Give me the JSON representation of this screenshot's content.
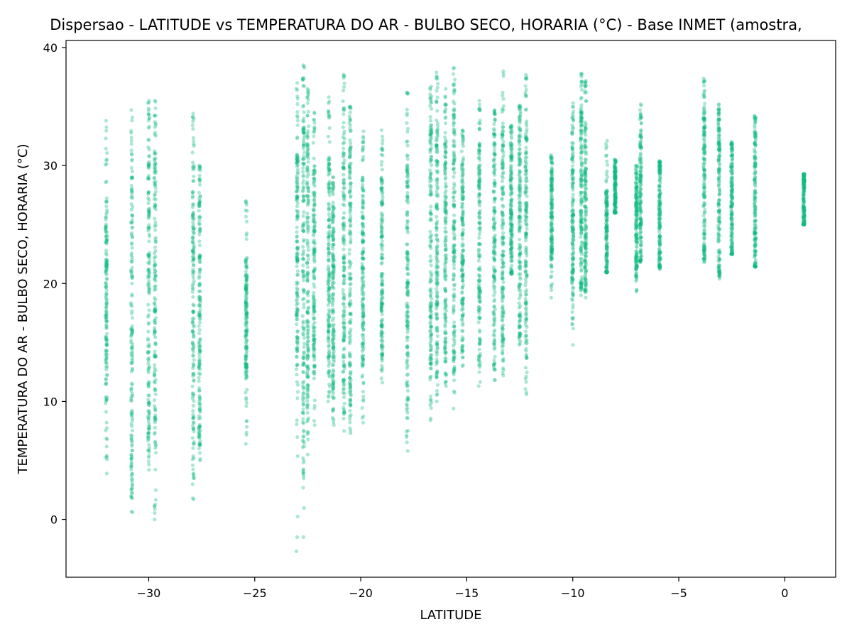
{
  "chart_data": {
    "type": "scatter",
    "title": "Dispersao - LATITUDE vs TEMPERATURA DO AR - BULBO SECO, HORARIA (°C) - Base INMET (amostra, ",
    "xlabel": "LATITUDE",
    "ylabel": "TEMPERATURA DO AR - BULBO SECO, HORARIA (°C)",
    "xlim": [
      -33.9,
      2.4
    ],
    "ylim": [
      -4.9,
      40.6
    ],
    "xticks": [
      -30,
      -25,
      -20,
      -15,
      -10,
      -5,
      0
    ],
    "yticks": [
      0,
      10,
      20,
      30,
      40
    ],
    "grid": false,
    "marker_color": "#10b981",
    "marker_opacity": 0.35,
    "series": [
      {
        "stations": [
          {
            "lat": -32.0,
            "min": 3.9,
            "max": 33.8,
            "core_min": 10.0,
            "core_max": 27.0
          },
          {
            "lat": -30.8,
            "min": 0.6,
            "max": 34.7,
            "core_min": 3.0,
            "core_max": 30.0
          },
          {
            "lat": -30.0,
            "min": 4.2,
            "max": 35.5,
            "core_min": 7.0,
            "core_max": 33.0
          },
          {
            "lat": -29.7,
            "min": 0.0,
            "max": 35.5,
            "core_min": 6.5,
            "core_max": 32.0
          },
          {
            "lat": -27.9,
            "min": 1.7,
            "max": 34.4,
            "core_min": 6.0,
            "core_max": 30.0
          },
          {
            "lat": -27.6,
            "min": 5.0,
            "max": 30.0,
            "core_min": 7.0,
            "core_max": 28.0
          },
          {
            "lat": -25.4,
            "min": 6.4,
            "max": 27.0,
            "core_min": 12.0,
            "core_max": 22.0
          },
          {
            "lat": -23.0,
            "min": -2.7,
            "max": 37.0,
            "core_min": 13.0,
            "core_max": 31.0
          },
          {
            "lat": -22.7,
            "min": -1.5,
            "max": 38.5,
            "core_min": 6.0,
            "core_max": 34.0
          },
          {
            "lat": -22.5,
            "min": 5.5,
            "max": 36.5,
            "core_min": 10.0,
            "core_max": 33.0
          },
          {
            "lat": -22.2,
            "min": 8.0,
            "max": 34.5,
            "core_min": 13.0,
            "core_max": 30.0
          },
          {
            "lat": -21.5,
            "min": 10.0,
            "max": 35.8,
            "core_min": 13.0,
            "core_max": 31.0
          },
          {
            "lat": -21.3,
            "min": 8.0,
            "max": 29.0,
            "core_min": 11.0,
            "core_max": 27.0
          },
          {
            "lat": -20.8,
            "min": 7.5,
            "max": 37.7,
            "core_min": 11.0,
            "core_max": 34.0
          },
          {
            "lat": -20.5,
            "min": 7.3,
            "max": 35.0,
            "core_min": 10.0,
            "core_max": 33.0
          },
          {
            "lat": -19.9,
            "min": 8.2,
            "max": 32.9,
            "core_min": 13.0,
            "core_max": 29.0
          },
          {
            "lat": -19.0,
            "min": 11.6,
            "max": 33.0,
            "core_min": 14.0,
            "core_max": 29.0
          },
          {
            "lat": -17.8,
            "min": 5.8,
            "max": 36.2,
            "core_min": 10.0,
            "core_max": 31.0
          },
          {
            "lat": -16.7,
            "min": 8.4,
            "max": 36.7,
            "core_min": 13.0,
            "core_max": 34.0
          },
          {
            "lat": -16.4,
            "min": 10.0,
            "max": 37.9,
            "core_min": 13.0,
            "core_max": 34.0
          },
          {
            "lat": -16.0,
            "min": 11.3,
            "max": 36.5,
            "core_min": 14.0,
            "core_max": 33.0
          },
          {
            "lat": -15.6,
            "min": 9.4,
            "max": 38.3,
            "core_min": 13.0,
            "core_max": 35.0
          },
          {
            "lat": -15.2,
            "min": 13.0,
            "max": 33.0,
            "core_min": 15.0,
            "core_max": 31.0
          },
          {
            "lat": -14.4,
            "min": 11.3,
            "max": 35.5,
            "core_min": 14.0,
            "core_max": 32.0
          },
          {
            "lat": -13.7,
            "min": 11.8,
            "max": 34.7,
            "core_min": 14.0,
            "core_max": 33.0
          },
          {
            "lat": -13.3,
            "min": 12.2,
            "max": 38.0,
            "core_min": 15.0,
            "core_max": 33.0
          },
          {
            "lat": -12.9,
            "min": 20.8,
            "max": 33.4,
            "core_min": 21.0,
            "core_max": 32.0
          },
          {
            "lat": -12.5,
            "min": 14.8,
            "max": 35.1,
            "core_min": 16.0,
            "core_max": 34.0
          },
          {
            "lat": -12.2,
            "min": 10.6,
            "max": 37.7,
            "core_min": 14.0,
            "core_max": 34.0
          },
          {
            "lat": -11.0,
            "min": 18.8,
            "max": 30.9,
            "core_min": 22.0,
            "core_max": 30.0
          },
          {
            "lat": -10.0,
            "min": 14.8,
            "max": 35.3,
            "core_min": 19.0,
            "core_max": 33.0
          },
          {
            "lat": -9.6,
            "min": 19.0,
            "max": 37.8,
            "core_min": 20.0,
            "core_max": 35.0
          },
          {
            "lat": -9.4,
            "min": 18.8,
            "max": 37.2,
            "core_min": 20.0,
            "core_max": 34.0
          },
          {
            "lat": -8.4,
            "min": 20.9,
            "max": 32.1,
            "core_min": 21.0,
            "core_max": 28.0
          },
          {
            "lat": -8.0,
            "min": 26.0,
            "max": 30.5,
            "core_min": 26.0,
            "core_max": 30.0
          },
          {
            "lat": -7.0,
            "min": 19.3,
            "max": 30.0,
            "core_min": 21.0,
            "core_max": 29.0
          },
          {
            "lat": -6.8,
            "min": 21.8,
            "max": 35.2,
            "core_min": 22.0,
            "core_max": 33.0
          },
          {
            "lat": -5.9,
            "min": 21.2,
            "max": 30.4,
            "core_min": 21.5,
            "core_max": 30.0
          },
          {
            "lat": -3.8,
            "min": 21.8,
            "max": 37.4,
            "core_min": 22.5,
            "core_max": 35.0
          },
          {
            "lat": -3.1,
            "min": 20.4,
            "max": 35.2,
            "core_min": 21.0,
            "core_max": 34.0
          },
          {
            "lat": -2.5,
            "min": 22.5,
            "max": 32.0,
            "core_min": 22.5,
            "core_max": 31.5
          },
          {
            "lat": -1.4,
            "min": 21.4,
            "max": 34.2,
            "core_min": 21.5,
            "core_max": 33.0
          },
          {
            "lat": 0.9,
            "min": 25.0,
            "max": 29.3,
            "core_min": 25.0,
            "core_max": 29.2
          }
        ]
      }
    ]
  }
}
